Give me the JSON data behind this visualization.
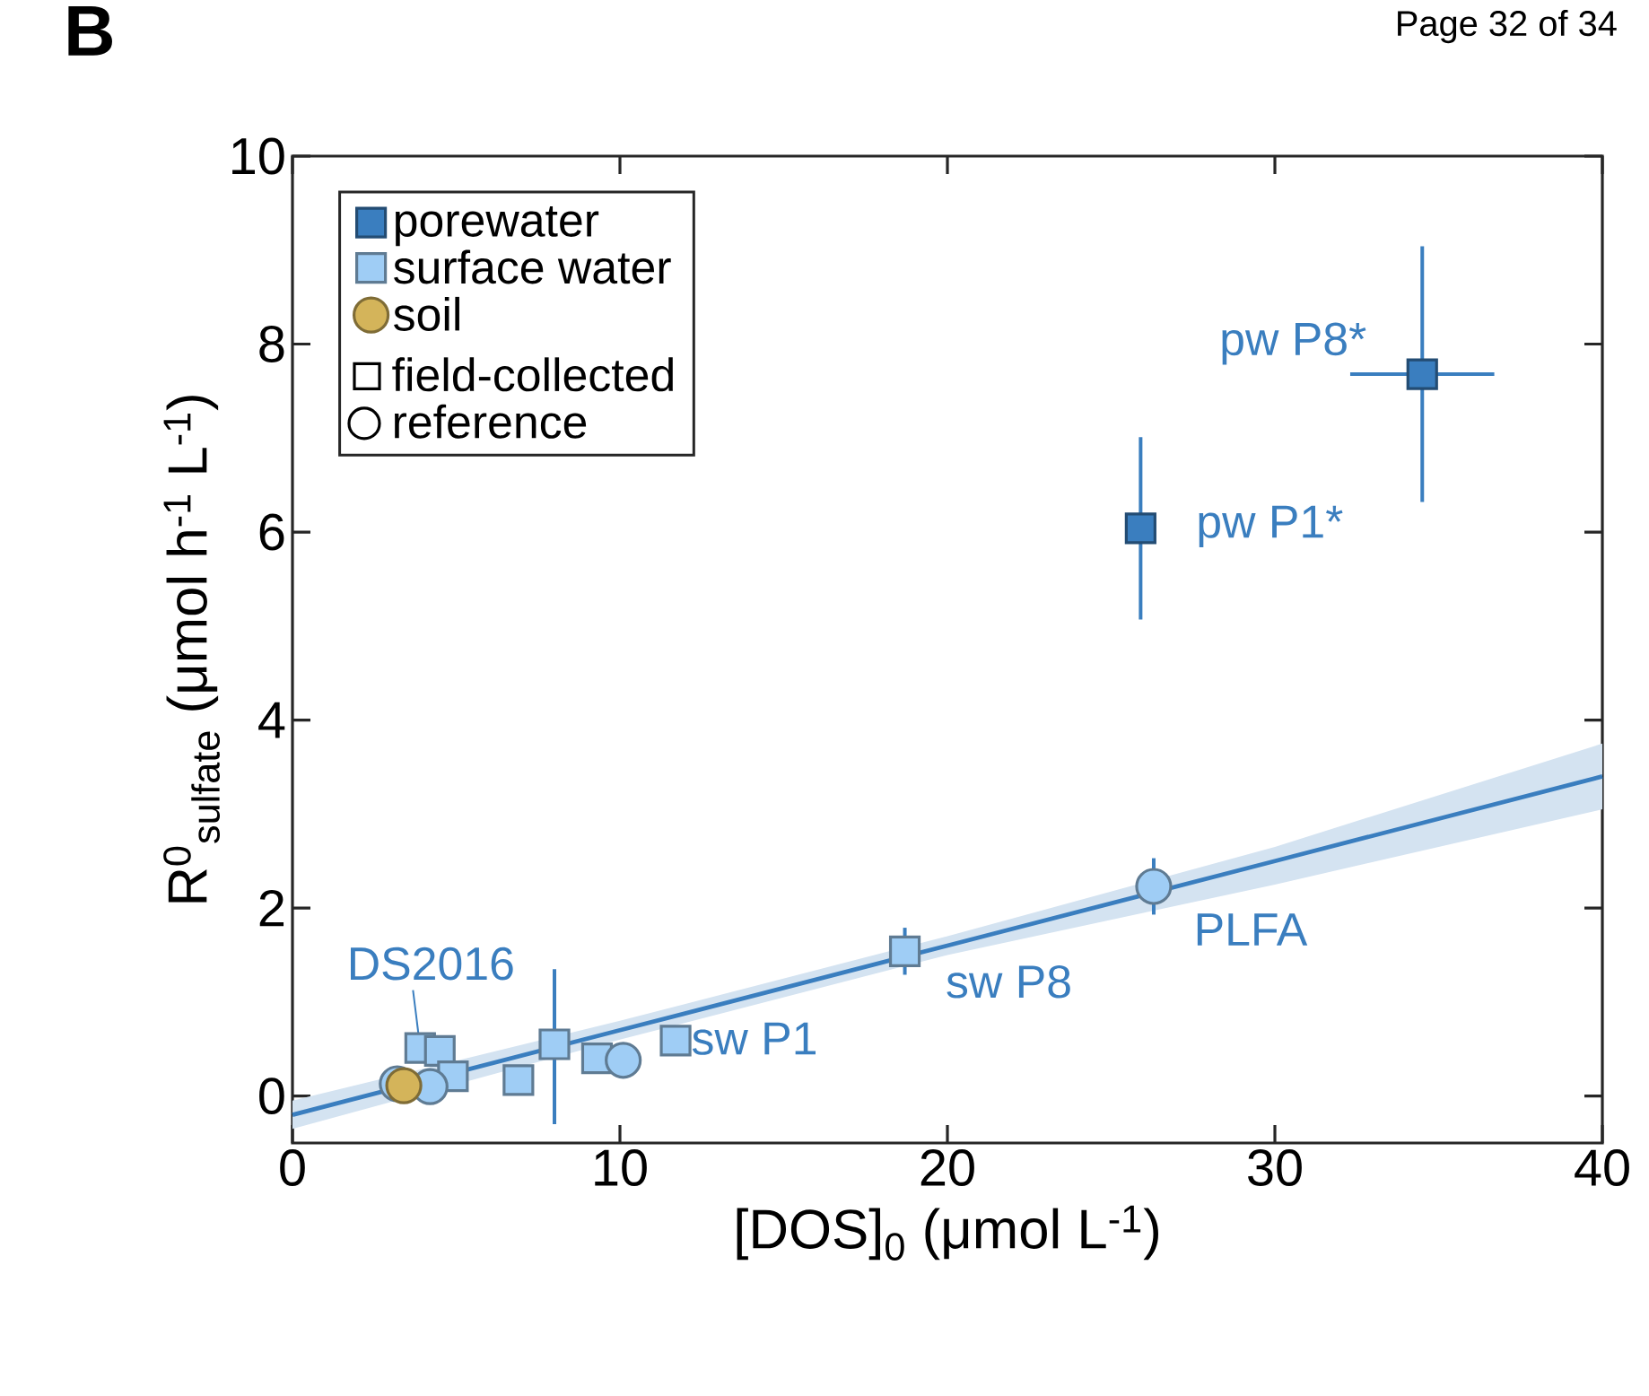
{
  "chart_data": {
    "type": "scatter",
    "title": "B",
    "xlabel": "[DOS]$_{0}$ (μmol L$^{-1}$)",
    "ylabel": "R$^{0}$$_{sulfate}$ (μmol h$^{-1}$ L$^{-1}$)",
    "xlim": [
      0,
      40
    ],
    "xticks": [
      0,
      10,
      20,
      30,
      40
    ],
    "ylim": [
      -0.5,
      10
    ],
    "yticks": [
      0,
      2,
      4,
      6,
      8,
      10
    ],
    "grid": false,
    "legend": "top left",
    "series": [
      {
        "name": "porewater",
        "color": "#3a7ebf",
        "marker": "square",
        "x": [
          25.9,
          34.5
        ],
        "values": [
          6.04,
          7.68
        ],
        "errors": [
          0.97,
          1.36
        ],
        "xerrors": [
          0.35,
          2.2
        ]
      },
      {
        "name": "surface water",
        "color": "#9fcdf5",
        "marker": "square",
        "x": [
          3.9,
          4.5,
          4.9,
          6.9,
          8.0,
          9.3,
          11.7,
          18.7
        ],
        "values": [
          0.51,
          0.48,
          0.21,
          0.17,
          0.55,
          0.4,
          0.59,
          1.54
        ],
        "errors": [
          null,
          null,
          null,
          null,
          [
            -0.3,
            1.35
          ],
          null,
          null,
          0.25
        ]
      },
      {
        "color": "#9fcdf5",
        "marker": "circle",
        "x": [
          3.2,
          4.2,
          10.1,
          26.3
        ],
        "values": [
          0.13,
          0.1,
          0.38,
          2.23
        ],
        "errors": [
          null,
          null,
          null,
          0.3
        ]
      },
      {
        "name": "soil",
        "color": "#d4b45a",
        "marker": "circle",
        "x": [
          3.4
        ],
        "values": [
          0.11
        ]
      },
      {
        "type": "line",
        "color": "#3a7ebf",
        "marker": "none",
        "x": [
          0,
          10,
          20,
          30,
          40
        ],
        "values": [
          -0.2,
          0.7,
          1.6,
          2.5,
          3.4
        ],
        "lower": [
          -0.35,
          0.6,
          1.5,
          2.25,
          3.05
        ],
        "upper": [
          -0.05,
          0.8,
          1.7,
          2.65,
          3.75
        ]
      }
    ],
    "annotations": [
      "field-collected",
      "reference",
      "Page 32 of 34",
      {
        "text": "pw P8*",
        "x": 34.5,
        "y": 7.68
      },
      {
        "text": "pw P1*",
        "x": 25.9,
        "y": 6.04
      },
      {
        "text": "PLFA",
        "x": 26.3,
        "y": 2.23
      },
      {
        "text": "sw P8",
        "x": 18.7,
        "y": 1.54
      },
      {
        "text": "sw P1",
        "x": 11.7,
        "y": 0.59
      },
      {
        "text": "DS2016",
        "x": 3.9,
        "y": 0.51
      }
    ]
  }
}
